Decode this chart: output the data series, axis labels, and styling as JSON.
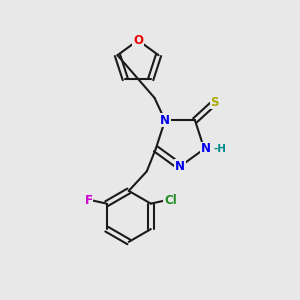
{
  "bg_color": "#e8e8e8",
  "bond_color": "#1a1a1a",
  "bond_lw": 1.5,
  "font_size": 9,
  "atom_colors": {
    "N": "#0000ee",
    "O": "#ee0000",
    "S": "#aaaa00",
    "F": "#cc00cc",
    "Cl": "#228B22",
    "H": "#008b8b",
    "C": "#1a1a1a"
  }
}
